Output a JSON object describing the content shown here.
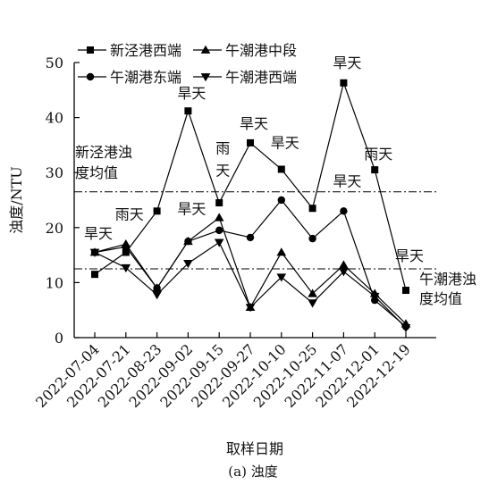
{
  "chart_data": {
    "type": "line",
    "categories": [
      "2022-07-04",
      "2022-07-21",
      "2022-08-23",
      "2022-09-02",
      "2022-09-15",
      "2022-09-27",
      "2022-10-10",
      "2022-10-25",
      "2022-11-07",
      "2022-12-01",
      "2022-12-19"
    ],
    "series": [
      {
        "name": "新泾港西端",
        "marker": "square",
        "values": [
          11.5,
          15.5,
          23.0,
          41.2,
          24.5,
          35.4,
          30.6,
          23.5,
          46.3,
          30.5,
          8.6
        ]
      },
      {
        "name": "午潮港中段",
        "marker": "triangle-up",
        "values": [
          15.5,
          17.0,
          9.0,
          17.5,
          21.8,
          5.5,
          15.5,
          8.0,
          13.2,
          8.0,
          2.5
        ]
      },
      {
        "name": "午潮港东端",
        "marker": "circle",
        "values": [
          15.5,
          16.5,
          9.0,
          17.5,
          19.5,
          18.2,
          25.0,
          18.0,
          23.0,
          6.8,
          2.0
        ]
      },
      {
        "name": "午潮港西端",
        "marker": "triangle-down",
        "values": [
          15.5,
          12.7,
          7.8,
          13.5,
          17.3,
          5.5,
          11.0,
          6.3,
          12.0,
          7.5,
          1.8
        ]
      }
    ],
    "reference_lines": [
      {
        "label_lines": [
          "新泾港浊",
          "度均值"
        ],
        "value": 26.5
      },
      {
        "label_lines": [
          "午潮港浊",
          "度均值"
        ],
        "value": 12.5
      }
    ],
    "annotations": [
      {
        "text": "旱天",
        "category": "2022-07-04",
        "value": 18.0
      },
      {
        "text": "雨天",
        "category": "2022-07-21",
        "value": 21.5
      },
      {
        "text": "旱天",
        "category": "2022-09-02",
        "value": 22.5
      },
      {
        "text": "旱天",
        "category": "2022-09-02",
        "value": 43.5
      },
      {
        "text": "雨",
        "category": "2022-09-15",
        "value": 33.5
      },
      {
        "text": "天",
        "category": "2022-09-15",
        "value": 29.5
      },
      {
        "text": "旱天",
        "category": "2022-09-27",
        "value": 38.0
      },
      {
        "text": "旱天",
        "category": "2022-10-10",
        "value": 34.5
      },
      {
        "text": "旱天",
        "category": "2022-11-07",
        "value": 27.5
      },
      {
        "text": "旱天",
        "category": "2022-11-07",
        "value": 49.0
      },
      {
        "text": "雨天",
        "category": "2022-12-01",
        "value": 32.5
      },
      {
        "text": "旱天",
        "category": "2022-12-19",
        "value": 14.0
      }
    ],
    "ylabel": "浊度/NTU",
    "xlabel": "取样日期",
    "ylim": [
      0,
      50
    ],
    "yticks": [
      0,
      10,
      20,
      30,
      40,
      50
    ],
    "grid": false,
    "legend_position": "top-left",
    "caption": "(a) 浊度"
  }
}
